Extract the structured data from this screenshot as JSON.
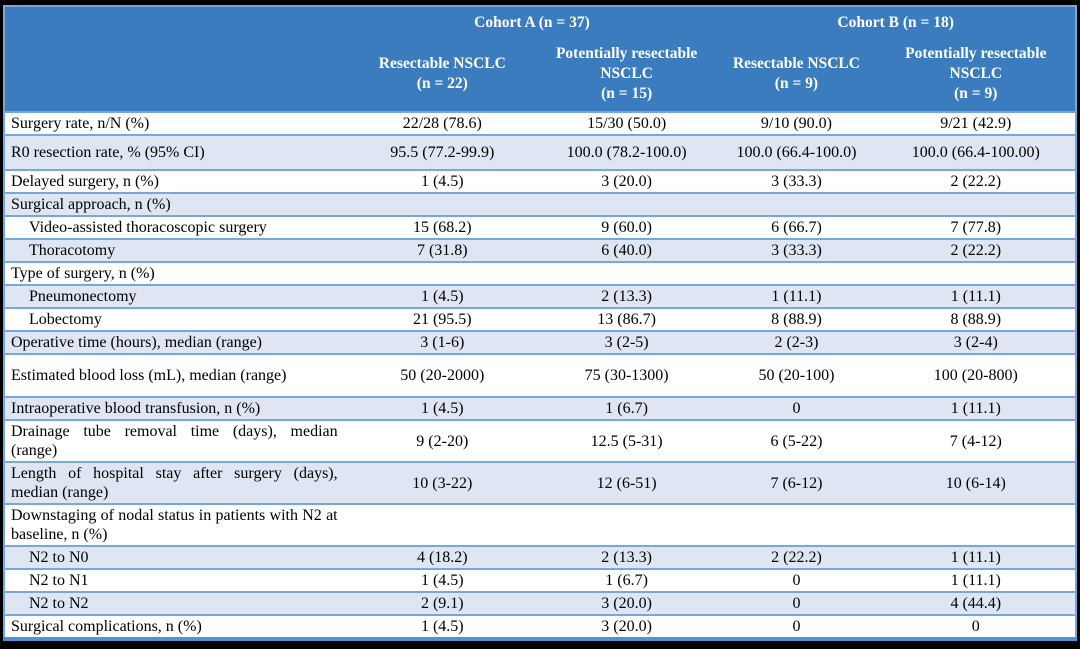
{
  "table": {
    "top_header": {
      "cohort_a": "Cohort A (n = 37)",
      "cohort_b": "Cohort B (n = 18)"
    },
    "columns": [
      {
        "name": "Resectable NSCLC",
        "n": "(n = 22)"
      },
      {
        "name": "Potentially resectable NSCLC",
        "n": "(n = 15)"
      },
      {
        "name": "Resectable NSCLC",
        "n": "(n = 9)"
      },
      {
        "name": "Potentially resectable NSCLC",
        "n": "(n = 9)"
      }
    ],
    "rows": [
      {
        "label": "Surgery rate, n/N (%)",
        "section": false,
        "indent": false,
        "values": [
          "22/28 (78.6)",
          "15/30 (50.0)",
          "9/10 (90.0)",
          "9/21 (42.9)"
        ]
      },
      {
        "label": "R0 resection rate, % (95% CI)",
        "section": false,
        "indent": false,
        "values": [
          "95.5 (77.2-99.9)",
          "100.0 (78.2-100.0)",
          "100.0 (66.4-100.0)",
          "100.0 (66.4-100.00)"
        ]
      },
      {
        "label": "Delayed surgery, n (%)",
        "section": false,
        "indent": false,
        "values": [
          "1 (4.5)",
          "3 (20.0)",
          "3 (33.3)",
          "2 (22.2)"
        ]
      },
      {
        "label": "Surgical approach, n (%)",
        "section": true,
        "indent": false,
        "values": [
          "",
          "",
          "",
          ""
        ]
      },
      {
        "label": "Video-assisted thoracoscopic surgery",
        "section": false,
        "indent": true,
        "values": [
          "15 (68.2)",
          "9 (60.0)",
          "6 (66.7)",
          "7 (77.8)"
        ]
      },
      {
        "label": "Thoracotomy",
        "section": false,
        "indent": true,
        "values": [
          "7 (31.8)",
          "6 (40.0)",
          "3 (33.3)",
          "2 (22.2)"
        ]
      },
      {
        "label": "Type of surgery, n (%)",
        "section": true,
        "indent": false,
        "values": [
          "",
          "",
          "",
          ""
        ]
      },
      {
        "label": "Pneumonectomy",
        "section": false,
        "indent": true,
        "values": [
          "1 (4.5)",
          "2 (13.3)",
          "1 (11.1)",
          "1 (11.1)"
        ]
      },
      {
        "label": "Lobectomy",
        "section": false,
        "indent": true,
        "values": [
          "21 (95.5)",
          "13 (86.7)",
          "8 (88.9)",
          "8 (88.9)"
        ]
      },
      {
        "label": "Operative time (hours), median (range)",
        "section": false,
        "indent": false,
        "values": [
          "3 (1-6)",
          "3 (2-5)",
          "2 (2-3)",
          "3 (2-4)"
        ]
      },
      {
        "label": "Estimated blood loss (mL), median (range)",
        "section": false,
        "indent": false,
        "values": [
          "50 (20-2000)",
          "75 (30-1300)",
          "50 (20-100)",
          "100 (20-800)"
        ]
      },
      {
        "label": "Intraoperative blood transfusion, n (%)",
        "section": false,
        "indent": false,
        "values": [
          "1 (4.5)",
          "1 (6.7)",
          "0",
          "1 (11.1)"
        ]
      },
      {
        "label": "Drainage tube removal time (days), median (range)",
        "section": false,
        "indent": false,
        "values": [
          "9 (2-20)",
          "12.5 (5-31)",
          "6 (5-22)",
          "7 (4-12)"
        ]
      },
      {
        "label": "Length of hospital stay after surgery (days), median (range)",
        "section": false,
        "indent": false,
        "values": [
          "10 (3-22)",
          "12 (6-51)",
          "7 (6-12)",
          "10 (6-14)"
        ]
      },
      {
        "label": "Downstaging of nodal status in patients with N2 at baseline, n (%)",
        "section": true,
        "indent": false,
        "values": [
          "",
          "",
          "",
          ""
        ]
      },
      {
        "label": "N2 to N0",
        "section": false,
        "indent": true,
        "values": [
          "4 (18.2)",
          "2 (13.3)",
          "2 (22.2)",
          "1 (11.1)"
        ]
      },
      {
        "label": "N2 to N1",
        "section": false,
        "indent": true,
        "values": [
          "1 (4.5)",
          "1 (6.7)",
          "0",
          "1 (11.1)"
        ]
      },
      {
        "label": "N2 to N2",
        "section": false,
        "indent": true,
        "values": [
          "2 (9.1)",
          "3 (20.0)",
          "0",
          "4 (44.4)"
        ]
      },
      {
        "label": "Surgical complications, n (%)",
        "section": false,
        "indent": false,
        "values": [
          "1 (4.5)",
          "3 (20.0)",
          "0",
          "0"
        ]
      }
    ]
  },
  "colors": {
    "header_bg": "#3b7cbf",
    "header_text": "#ffffff",
    "alt_row": "#dde6f2",
    "border": "#79a7d9",
    "thick_border": "#4f94d1",
    "body_text": "#000000",
    "frame": "#000000"
  }
}
